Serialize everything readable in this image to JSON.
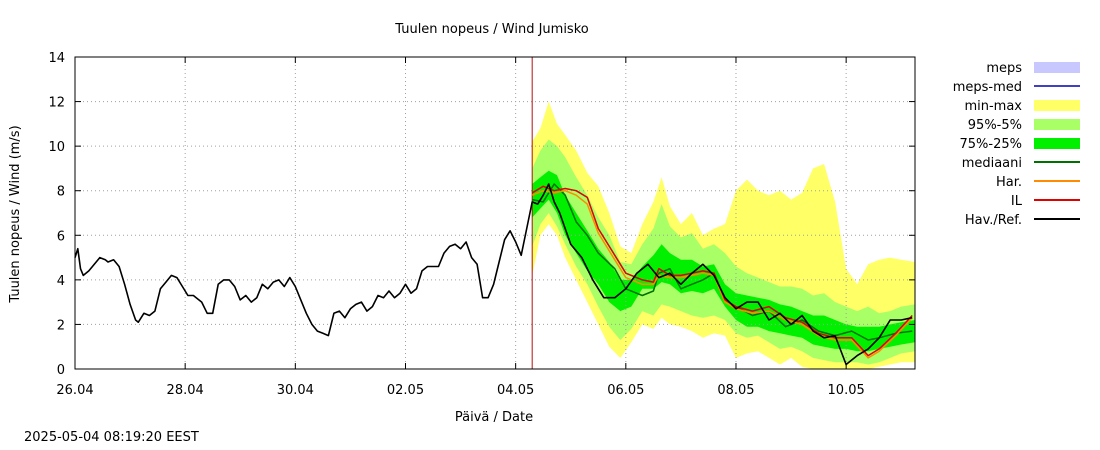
{
  "chart_data": {
    "type": "line",
    "title": "Tuulen nopeus / Wind  Jumisko",
    "xlabel": "Päivä / Date",
    "ylabel": "Tuulen nopeus / Wind (m/s)",
    "ylim": [
      0,
      14
    ],
    "xlim": [
      0,
      15.25
    ],
    "x_unit": "days since 26.04 00:00",
    "grid": true,
    "legend_position": "right",
    "x_ticks": [
      {
        "x": 0,
        "label": "26.04"
      },
      {
        "x": 2,
        "label": "28.04"
      },
      {
        "x": 4,
        "label": "30.04"
      },
      {
        "x": 6,
        "label": "02.05"
      },
      {
        "x": 8,
        "label": "04.05"
      },
      {
        "x": 10,
        "label": "06.05"
      },
      {
        "x": 12,
        "label": "08.05"
      },
      {
        "x": 14,
        "label": "10.05"
      }
    ],
    "y_ticks": [
      0,
      2,
      4,
      6,
      8,
      10,
      12,
      14
    ],
    "forecast_start": 8.3,
    "legend": [
      {
        "label": "meps",
        "kind": "box",
        "color": "#c8c8ff"
      },
      {
        "label": "meps-med",
        "kind": "line",
        "color": "#4040c0"
      },
      {
        "label": "min-max",
        "kind": "box",
        "color": "#ffff66"
      },
      {
        "label": "95%-5%",
        "kind": "box",
        "color": "#a8ff66"
      },
      {
        "label": "75%-25%",
        "kind": "box",
        "color": "#00f000"
      },
      {
        "label": "mediaani",
        "kind": "line",
        "color": "#007000"
      },
      {
        "label": "Har.",
        "kind": "line",
        "color": "#ff8c00"
      },
      {
        "label": "IL",
        "kind": "line",
        "color": "#e00000"
      },
      {
        "label": "Hav./Ref.",
        "kind": "line",
        "color": "#000000"
      }
    ],
    "series": [
      {
        "name": "Hav./Ref.",
        "color": "#000000",
        "x": [
          0,
          0.05,
          0.1,
          0.15,
          0.25,
          0.35,
          0.45,
          0.55,
          0.6,
          0.7,
          0.8,
          0.9,
          1.0,
          1.1,
          1.15,
          1.25,
          1.35,
          1.45,
          1.55,
          1.65,
          1.75,
          1.85,
          1.95,
          2.05,
          2.15,
          2.2,
          2.3,
          2.4,
          2.5,
          2.6,
          2.7,
          2.8,
          2.9,
          3.0,
          3.1,
          3.2,
          3.3,
          3.4,
          3.5,
          3.6,
          3.7,
          3.8,
          3.9,
          4.0,
          4.1,
          4.2,
          4.3,
          4.4,
          4.5,
          4.6,
          4.7,
          4.8,
          4.9,
          5.0,
          5.1,
          5.2,
          5.3,
          5.4,
          5.5,
          5.6,
          5.7,
          5.8,
          5.9,
          6.0,
          6.1,
          6.2,
          6.3,
          6.4,
          6.5,
          6.6,
          6.7,
          6.8,
          6.9,
          7.0,
          7.1,
          7.2,
          7.3,
          7.4,
          7.5,
          7.6,
          7.7,
          7.8,
          7.9,
          8.0,
          8.1,
          8.2,
          8.3,
          8.4,
          8.5,
          8.6,
          8.7,
          8.8,
          8.9,
          9.0,
          9.2,
          9.4,
          9.6,
          9.8,
          10.0,
          10.2,
          10.4,
          10.6,
          10.8,
          11.0,
          11.2,
          11.4,
          11.6,
          11.8,
          12.0,
          12.2,
          12.4,
          12.6,
          12.8,
          13.0,
          13.2,
          13.4,
          13.6,
          13.8,
          14.0,
          14.2,
          14.4,
          14.6,
          14.8,
          15.0,
          15.2
        ],
        "y": [
          5.0,
          5.4,
          4.5,
          4.2,
          4.4,
          4.7,
          5.0,
          4.9,
          4.8,
          4.9,
          4.6,
          3.8,
          2.9,
          2.2,
          2.1,
          2.5,
          2.4,
          2.6,
          3.6,
          3.9,
          4.2,
          4.1,
          3.7,
          3.3,
          3.3,
          3.2,
          3.0,
          2.5,
          2.5,
          3.8,
          4.0,
          4.0,
          3.7,
          3.1,
          3.3,
          3.0,
          3.2,
          3.8,
          3.6,
          3.9,
          4.0,
          3.7,
          4.1,
          3.7,
          3.1,
          2.5,
          2.0,
          1.7,
          1.6,
          1.5,
          2.5,
          2.6,
          2.3,
          2.7,
          2.9,
          3.0,
          2.6,
          2.8,
          3.3,
          3.2,
          3.5,
          3.2,
          3.4,
          3.8,
          3.4,
          3.6,
          4.4,
          4.6,
          4.6,
          4.6,
          5.2,
          5.5,
          5.6,
          5.4,
          5.7,
          5.0,
          4.7,
          3.2,
          3.2,
          3.8,
          4.8,
          5.8,
          6.2,
          5.7,
          5.1,
          6.3,
          7.5,
          7.4,
          7.8,
          8.3,
          7.5,
          7.0,
          6.3,
          5.6,
          5.0,
          4.0,
          3.2,
          3.2,
          3.6,
          4.3,
          4.7,
          4.1,
          4.3,
          3.8,
          4.3,
          4.7,
          4.2,
          3.2,
          2.7,
          3.0,
          3.0,
          2.2,
          2.5,
          2.0,
          2.4,
          1.7,
          1.4,
          1.5,
          0.2,
          0.6,
          0.9,
          1.4,
          2.2,
          2.2,
          2.3
        ]
      },
      {
        "name": "IL",
        "color": "#e00000",
        "x": [
          8.3,
          8.5,
          8.7,
          8.9,
          9.1,
          9.3,
          9.5,
          9.8,
          10.0,
          10.3,
          10.5,
          10.6,
          10.8,
          11.0,
          11.2,
          11.4,
          11.6,
          11.8,
          12.0,
          12.3,
          12.6,
          12.9,
          13.2,
          13.5,
          13.8,
          14.1,
          14.4,
          14.6,
          14.9,
          15.2
        ],
        "y": [
          7.9,
          8.2,
          8.0,
          8.1,
          8.0,
          7.7,
          6.3,
          5.1,
          4.3,
          4.0,
          3.9,
          4.5,
          4.2,
          4.2,
          4.3,
          4.4,
          4.3,
          3.1,
          2.8,
          2.6,
          2.8,
          2.3,
          2.1,
          1.6,
          1.4,
          1.4,
          0.6,
          0.9,
          1.6,
          2.4
        ]
      },
      {
        "name": "Har.",
        "color": "#ff8c00",
        "x": [
          8.3,
          8.5,
          8.7,
          8.9,
          9.1,
          9.3,
          9.5,
          9.8,
          10.0,
          10.3,
          10.5,
          10.6,
          10.8,
          11.0,
          11.2,
          11.4,
          11.6,
          11.8,
          12.0,
          12.3,
          12.6,
          12.9,
          13.2,
          13.5,
          13.8,
          14.1,
          14.4,
          14.6,
          14.9,
          15.2
        ],
        "y": [
          7.8,
          8.0,
          7.9,
          8.0,
          7.8,
          7.4,
          6.1,
          4.9,
          4.1,
          3.8,
          3.8,
          4.2,
          4.1,
          4.1,
          4.2,
          4.3,
          4.2,
          3.0,
          2.7,
          2.5,
          2.6,
          2.2,
          2.0,
          1.5,
          1.3,
          1.3,
          0.5,
          0.8,
          1.5,
          2.3
        ]
      },
      {
        "name": "mediaani",
        "color": "#007000",
        "x": [
          8.3,
          8.5,
          8.7,
          8.9,
          9.1,
          9.3,
          9.5,
          9.8,
          10.0,
          10.3,
          10.5,
          10.6,
          10.8,
          11.0,
          11.2,
          11.4,
          11.6,
          11.8,
          12.0,
          12.3,
          12.6,
          12.9,
          13.2,
          13.5,
          13.8,
          14.1,
          14.4,
          14.6,
          14.9,
          15.2
        ],
        "y": [
          7.6,
          7.5,
          8.3,
          7.8,
          6.6,
          6.0,
          5.2,
          4.5,
          3.6,
          3.3,
          3.5,
          4.3,
          4.5,
          3.6,
          3.8,
          4.0,
          4.3,
          3.1,
          2.8,
          2.4,
          2.6,
          1.9,
          2.2,
          1.7,
          1.5,
          1.7,
          1.3,
          1.4,
          1.6,
          1.7
        ]
      }
    ],
    "bands": [
      {
        "name": "min-max",
        "color": "#ffff66",
        "x": [
          8.3,
          8.45,
          8.6,
          8.75,
          8.9,
          9.1,
          9.3,
          9.5,
          9.7,
          9.9,
          10.1,
          10.3,
          10.5,
          10.65,
          10.8,
          11.0,
          11.2,
          11.4,
          11.6,
          11.8,
          12.0,
          12.2,
          12.4,
          12.6,
          12.8,
          13.0,
          13.2,
          13.4,
          13.6,
          13.8,
          14.0,
          14.2,
          14.4,
          14.6,
          14.8,
          15.0,
          15.25
        ],
        "upper": [
          10.2,
          10.8,
          12.0,
          11.0,
          10.5,
          9.8,
          8.8,
          8.2,
          7.0,
          5.5,
          5.2,
          6.5,
          7.5,
          8.6,
          7.3,
          6.5,
          7.0,
          6.0,
          6.3,
          6.5,
          8.0,
          8.5,
          8.0,
          7.8,
          8.0,
          7.6,
          7.9,
          9.0,
          9.2,
          7.5,
          4.5,
          3.8,
          4.7,
          4.9,
          5.0,
          4.9,
          4.8
        ],
        "lower": [
          4.2,
          6.0,
          6.5,
          6.0,
          5.0,
          4.0,
          3.0,
          2.0,
          1.0,
          0.5,
          1.2,
          2.0,
          1.8,
          2.3,
          2.0,
          1.9,
          1.7,
          1.4,
          1.6,
          1.5,
          0.5,
          0.7,
          0.8,
          0.5,
          0.2,
          0.5,
          0.1,
          0.0,
          0.0,
          0.0,
          0.0,
          0.0,
          0.0,
          0.1,
          0.2,
          0.3,
          0.3
        ]
      },
      {
        "name": "95%-5%",
        "color": "#a8ff66",
        "x": [
          8.3,
          8.45,
          8.6,
          8.75,
          8.9,
          9.1,
          9.3,
          9.5,
          9.7,
          9.9,
          10.1,
          10.3,
          10.5,
          10.65,
          10.8,
          11.0,
          11.2,
          11.4,
          11.6,
          11.8,
          12.0,
          12.2,
          12.4,
          12.6,
          12.8,
          13.0,
          13.2,
          13.4,
          13.6,
          13.8,
          14.0,
          14.2,
          14.4,
          14.6,
          14.8,
          15.0,
          15.25
        ],
        "upper": [
          9.0,
          9.8,
          10.3,
          10.0,
          9.5,
          8.6,
          7.8,
          6.8,
          6.0,
          4.8,
          4.7,
          5.6,
          6.3,
          7.4,
          6.4,
          5.9,
          6.1,
          5.4,
          5.6,
          5.2,
          4.6,
          4.3,
          4.1,
          3.9,
          3.7,
          3.7,
          3.6,
          3.3,
          3.4,
          3.0,
          2.8,
          2.6,
          2.8,
          2.5,
          2.6,
          2.8,
          2.9
        ],
        "lower": [
          5.5,
          6.5,
          7.0,
          6.4,
          5.6,
          4.6,
          3.8,
          2.8,
          1.9,
          1.3,
          1.8,
          2.6,
          2.4,
          2.9,
          2.8,
          2.6,
          2.4,
          2.3,
          2.4,
          2.2,
          1.6,
          1.4,
          1.5,
          1.2,
          0.9,
          1.0,
          0.8,
          0.5,
          0.4,
          0.3,
          0.3,
          0.3,
          0.2,
          0.3,
          0.5,
          0.7,
          0.8
        ]
      },
      {
        "name": "75%-25%",
        "color": "#00f000",
        "x": [
          8.3,
          8.45,
          8.6,
          8.75,
          8.9,
          9.1,
          9.3,
          9.5,
          9.7,
          9.9,
          10.1,
          10.3,
          10.5,
          10.65,
          10.8,
          11.0,
          11.2,
          11.4,
          11.6,
          11.8,
          12.0,
          12.2,
          12.4,
          12.6,
          12.8,
          13.0,
          13.2,
          13.4,
          13.6,
          13.8,
          14.0,
          14.2,
          14.4,
          14.6,
          14.8,
          15.0,
          15.25
        ],
        "upper": [
          8.3,
          8.6,
          8.9,
          8.7,
          7.8,
          7.0,
          6.2,
          5.4,
          4.8,
          4.0,
          4.0,
          4.6,
          5.1,
          5.6,
          5.2,
          4.9,
          4.9,
          4.6,
          4.7,
          3.8,
          3.4,
          3.3,
          3.2,
          3.1,
          2.9,
          2.8,
          2.6,
          2.4,
          2.4,
          2.2,
          2.0,
          1.9,
          1.9,
          1.9,
          2.0,
          2.1,
          2.2
        ],
        "lower": [
          6.8,
          7.2,
          7.6,
          7.0,
          6.0,
          5.2,
          4.4,
          3.8,
          3.0,
          2.6,
          2.8,
          3.6,
          3.6,
          3.9,
          3.8,
          3.4,
          3.5,
          3.4,
          3.6,
          2.8,
          2.2,
          1.9,
          1.9,
          1.7,
          1.6,
          1.5,
          1.4,
          1.1,
          1.0,
          0.9,
          0.9,
          0.8,
          0.8,
          0.9,
          1.0,
          1.1,
          1.2
        ]
      }
    ]
  },
  "timestamp": "2025-05-04 08:19:20 EEST"
}
